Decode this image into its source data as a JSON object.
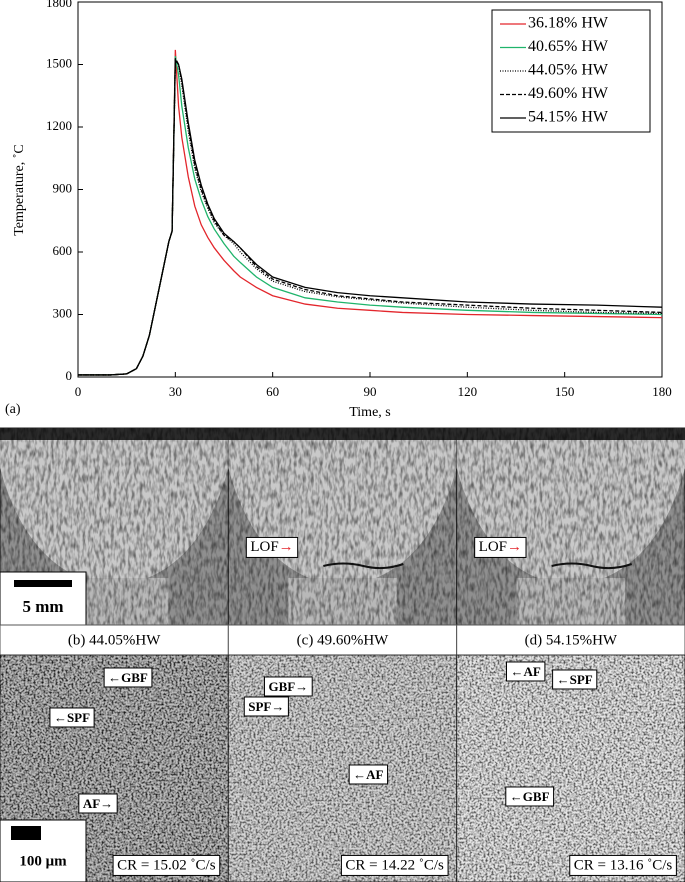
{
  "chart_data": {
    "type": "line",
    "x": [
      0,
      10,
      15,
      18,
      20,
      22,
      24,
      26,
      28,
      29,
      30,
      31,
      32,
      34,
      36,
      38,
      40,
      42,
      45,
      48,
      50,
      55,
      60,
      70,
      80,
      90,
      100,
      120,
      140,
      160,
      180
    ],
    "series": [
      {
        "name": "36.18% HW",
        "color": "#e3262c",
        "dash": "solid",
        "values": [
          10,
          10,
          15,
          40,
          100,
          200,
          350,
          500,
          650,
          700,
          1570,
          1300,
          1150,
          960,
          820,
          730,
          670,
          620,
          560,
          510,
          480,
          430,
          390,
          350,
          330,
          320,
          310,
          300,
          295,
          290,
          285
        ]
      },
      {
        "name": "40.65% HW",
        "color": "#1fb46b",
        "dash": "solid",
        "values": [
          10,
          10,
          15,
          40,
          100,
          200,
          350,
          500,
          650,
          700,
          1540,
          1450,
          1300,
          1100,
          950,
          850,
          770,
          710,
          640,
          580,
          550,
          480,
          430,
          380,
          360,
          345,
          335,
          320,
          310,
          305,
          300
        ]
      },
      {
        "name": "44.05% HW",
        "color": "#000000",
        "dash": "dotted",
        "values": [
          10,
          10,
          15,
          40,
          100,
          200,
          350,
          500,
          650,
          700,
          1520,
          1500,
          1400,
          1180,
          1000,
          890,
          810,
          740,
          680,
          640,
          600,
          520,
          460,
          410,
          385,
          370,
          355,
          335,
          320,
          310,
          305
        ]
      },
      {
        "name": "49.60% HW",
        "color": "#000000",
        "dash": "dashed",
        "values": [
          10,
          10,
          15,
          40,
          100,
          200,
          350,
          500,
          650,
          700,
          1530,
          1500,
          1420,
          1200,
          1020,
          900,
          820,
          750,
          680,
          650,
          620,
          530,
          470,
          420,
          390,
          375,
          360,
          345,
          330,
          320,
          310
        ]
      },
      {
        "name": "54.15% HW",
        "color": "#000000",
        "dash": "solid",
        "values": [
          10,
          10,
          15,
          40,
          100,
          200,
          350,
          500,
          650,
          700,
          1520,
          1500,
          1430,
          1220,
          1040,
          920,
          830,
          760,
          690,
          650,
          620,
          540,
          480,
          430,
          405,
          390,
          380,
          360,
          350,
          345,
          335
        ]
      }
    ],
    "xlabel": "Time, s",
    "ylabel": "Temperature, ˚C",
    "xlim": [
      0,
      180
    ],
    "xticks": [
      0,
      30,
      60,
      90,
      120,
      150,
      180
    ],
    "ylim": [
      0,
      1800
    ],
    "yticks": [
      0,
      300,
      600,
      900,
      1200,
      1500,
      1800
    ],
    "legend": "upper right",
    "grid": false
  },
  "panel_label": "(a)",
  "macrographs": [
    {
      "caption": "(b) 44.05%HW",
      "scale_bar": "5 mm"
    },
    {
      "caption": "(c) 49.60%HW",
      "lof": {
        "text": "LOF",
        "arrow": "→"
      }
    },
    {
      "caption": "(d) 54.15%HW",
      "lof": {
        "text": "LOF",
        "arrow": "→"
      }
    }
  ],
  "micrographs": [
    {
      "labels": [
        "←GBF",
        "←SPF",
        "AF→"
      ],
      "cooling_rate": "CR = 15.02 ˚C/s",
      "scale_bar": "100 μm"
    },
    {
      "labels": [
        "GBF→",
        "SPF→",
        "←AF"
      ],
      "cooling_rate": "CR = 14.22 ˚C/s"
    },
    {
      "labels": [
        "←AF",
        "←SPF",
        "←GBF"
      ],
      "cooling_rate": "CR = 13.16 ˚C/s"
    }
  ]
}
